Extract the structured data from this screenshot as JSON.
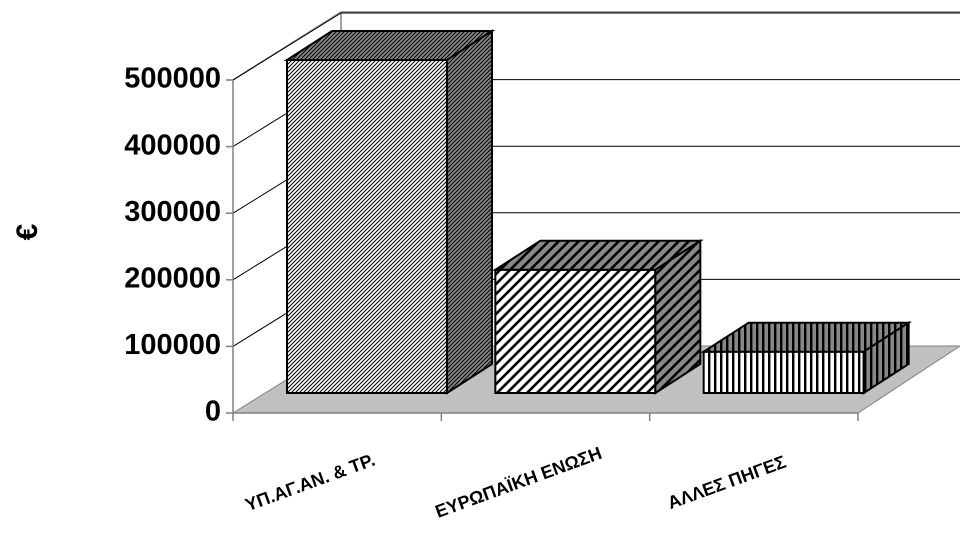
{
  "chart_data": {
    "type": "bar",
    "title": "",
    "xlabel": "",
    "ylabel": "€",
    "categories": [
      "ΥΠ.ΑΓ.ΑΝ. & ΤΡ.",
      "ΕΥΡΩΠΑΪΚΗ ΕΝΩΣΗ",
      "ΑΛΛΕΣ ΠΗΓΕΣ"
    ],
    "values": [
      500000,
      185000,
      62000
    ],
    "yticks": [
      "0",
      "100000",
      "200000",
      "300000",
      "400000",
      "500000"
    ],
    "ylim": [
      0,
      500000
    ],
    "grid": true,
    "legend": "none",
    "style": "3d",
    "colors": {
      "floor": "#c0c0c0",
      "axis": "#808080",
      "bar_outline": "#000000"
    }
  }
}
